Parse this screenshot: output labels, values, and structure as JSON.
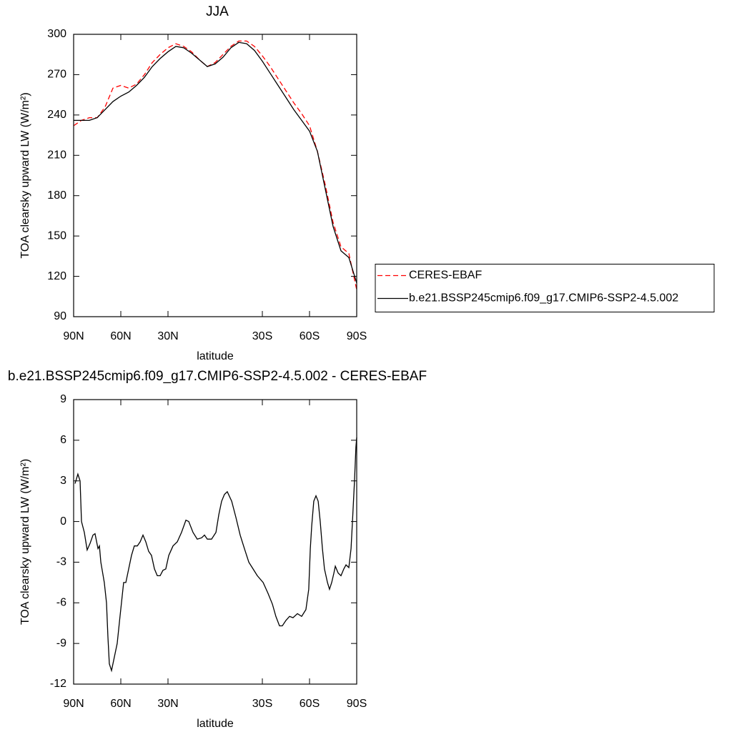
{
  "chart_data": [
    {
      "type": "line",
      "title": "JJA",
      "x_label": "latitude",
      "y_label": "TOA clearsky upward LW (W/m²)",
      "x": [
        90,
        85,
        80,
        75,
        70,
        65,
        60,
        55,
        50,
        45,
        40,
        35,
        30,
        25,
        20,
        15,
        10,
        5,
        0,
        -5,
        -10,
        -15,
        -20,
        -25,
        -30,
        -35,
        -40,
        -45,
        -50,
        -55,
        -60,
        -65,
        -70,
        -75,
        -80,
        -85,
        -90
      ],
      "xlim": [
        90,
        -90
      ],
      "xticks": [
        {
          "value": 90,
          "label": "90N"
        },
        {
          "value": 60,
          "label": "60N"
        },
        {
          "value": 30,
          "label": "30N"
        },
        {
          "value": -30,
          "label": "30S"
        },
        {
          "value": -60,
          "label": "60S"
        },
        {
          "value": -90,
          "label": "90S"
        }
      ],
      "ylim": [
        90,
        300
      ],
      "yticks": [
        90,
        120,
        150,
        180,
        210,
        240,
        270,
        300
      ],
      "legend": "right",
      "series": [
        {
          "name": "CERES-EBAF",
          "color": "#ff0000",
          "dash": true,
          "values": [
            232,
            236,
            238,
            238,
            246,
            260,
            262,
            260,
            263,
            270,
            279,
            285,
            290,
            293,
            291,
            287,
            281,
            276,
            279,
            285,
            291,
            295,
            295,
            291,
            284,
            276,
            267,
            258,
            249,
            241,
            232,
            213,
            188,
            160,
            142,
            137,
            110
          ]
        },
        {
          "name": "b.e21.BSSP245cmip6.f09_g17.CMIP6-SSP2-4.5.002",
          "color": "#000000",
          "dash": false,
          "values": [
            236,
            236,
            236,
            238,
            244,
            250,
            254,
            257,
            262,
            268,
            276,
            282,
            287,
            291,
            290,
            286,
            281,
            276,
            278,
            283,
            290,
            294,
            293,
            288,
            280,
            271,
            262,
            253,
            244,
            236,
            228,
            213,
            185,
            157,
            139,
            134,
            115
          ]
        }
      ]
    },
    {
      "type": "line",
      "title": "b.e21.BSSP245cmip6.f09_g17.CMIP6-SSP2-4.5.002 - CERES-EBAF",
      "x_label": "latitude",
      "y_label": "TOA clearsky upward LW (W/m²)",
      "x": [
        89.1,
        87.3,
        85.9,
        85,
        83.2,
        81.4,
        79.5,
        77.7,
        76.4,
        74.5,
        73.6,
        72.7,
        70.5,
        69.1,
        68.2,
        67.3,
        65.9,
        64.1,
        62.3,
        60.5,
        58.2,
        56.8,
        55,
        53.2,
        51.4,
        49.5,
        47.7,
        45.9,
        44.1,
        42.3,
        40.5,
        38.6,
        36.8,
        35,
        33.2,
        31.4,
        29.5,
        26.8,
        24.1,
        21.4,
        18.6,
        16.8,
        14.1,
        11.4,
        8.6,
        6.8,
        5,
        2.3,
        -0.5,
        -2.3,
        -4.1,
        -5.9,
        -7.7,
        -10.5,
        -13.2,
        -15.9,
        -18.6,
        -21.4,
        -24.1,
        -26.8,
        -30.5,
        -33.6,
        -36.4,
        -38.6,
        -40.9,
        -42.7,
        -45,
        -47.3,
        -49.5,
        -52.3,
        -55,
        -57.7,
        -59.5,
        -60.5,
        -61.4,
        -62.7,
        -64.1,
        -65.5,
        -66.8,
        -68.2,
        -69.5,
        -71.4,
        -72.7,
        -74.1,
        -75.5,
        -76.4,
        -78.2,
        -80,
        -81.8,
        -83.2,
        -85,
        -86.4,
        -87.3,
        -88.6,
        -89.5,
        -90
      ],
      "xlim": [
        90,
        -90
      ],
      "xticks": [
        {
          "value": 90,
          "label": "90N"
        },
        {
          "value": 60,
          "label": "60N"
        },
        {
          "value": 30,
          "label": "30N"
        },
        {
          "value": -30,
          "label": "30S"
        },
        {
          "value": -60,
          "label": "60S"
        },
        {
          "value": -90,
          "label": "90S"
        }
      ],
      "ylim": [
        -12,
        9
      ],
      "yticks": [
        -12,
        -9,
        -6,
        -3,
        0,
        3,
        6,
        9
      ],
      "series": [
        {
          "color": "#000000",
          "dash": false,
          "values": [
            2.8,
            3.5,
            3,
            0,
            -0.8,
            -2.1,
            -1.6,
            -1,
            -0.9,
            -2,
            -1.8,
            -3,
            -4.5,
            -6,
            -8.5,
            -10.5,
            -11,
            -10,
            -9,
            -7,
            -4.5,
            -4.5,
            -3.5,
            -2.5,
            -1.8,
            -1.8,
            -1.5,
            -1,
            -1.5,
            -2.2,
            -2.5,
            -3.5,
            -4,
            -4,
            -3.6,
            -3.5,
            -2.5,
            -1.8,
            -1.5,
            -0.8,
            0.1,
            0,
            -0.8,
            -1.3,
            -1.2,
            -1,
            -1.3,
            -1.3,
            -0.8,
            0.5,
            1.5,
            2,
            2.2,
            1.5,
            0.3,
            -1,
            -2,
            -3,
            -3.5,
            -4,
            -4.5,
            -5.3,
            -6.1,
            -7,
            -7.7,
            -7.7,
            -7.3,
            -7,
            -7.1,
            -6.8,
            -7,
            -6.5,
            -5,
            -2,
            -0.3,
            1.5,
            1.9,
            1.5,
            0,
            -2,
            -3.5,
            -4.5,
            -5,
            -4.5,
            -3.8,
            -3.3,
            -3.8,
            -4,
            -3.5,
            -3.2,
            -3.4,
            -2,
            0,
            3,
            5.5,
            6.2
          ]
        }
      ]
    }
  ]
}
